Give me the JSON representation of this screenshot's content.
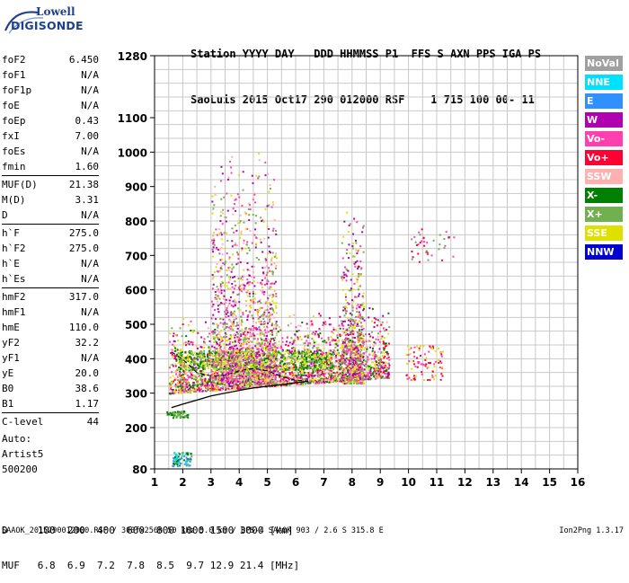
{
  "logo": {
    "line1": "Lowell",
    "line2": "DIGISONDE"
  },
  "header": {
    "line1": "Station YYYY DAY   DDD HHMMSS P1  FFS S AXN PPS IGA PS",
    "line2": "SaoLuis 2015 Oct17 290 012000 RSF    1 715 100 00- 11"
  },
  "params": [
    {
      "label": "foF2",
      "value": "6.450"
    },
    {
      "label": "foF1",
      "value": "N/A"
    },
    {
      "label": "foF1p",
      "value": "N/A"
    },
    {
      "label": "foE",
      "value": "N/A"
    },
    {
      "label": "foEp",
      "value": "0.43"
    },
    {
      "label": "fxI",
      "value": "7.00"
    },
    {
      "label": "foEs",
      "value": "N/A"
    },
    {
      "label": "fmin",
      "value": "1.60"
    },
    {
      "label": "MUF(D)",
      "value": "21.38"
    },
    {
      "label": "M(D)",
      "value": "3.31"
    },
    {
      "label": "D",
      "value": "N/A"
    },
    {
      "label": "h`F",
      "value": "275.0"
    },
    {
      "label": "h`F2",
      "value": "275.0"
    },
    {
      "label": "h`E",
      "value": "N/A"
    },
    {
      "label": "h`Es",
      "value": "N/A"
    },
    {
      "label": "hmF2",
      "value": "317.0"
    },
    {
      "label": "hmF1",
      "value": "N/A"
    },
    {
      "label": "hmE",
      "value": "110.0"
    },
    {
      "label": "yF2",
      "value": "32.2"
    },
    {
      "label": "yF1",
      "value": "N/A"
    },
    {
      "label": "yE",
      "value": "20.0"
    },
    {
      "label": "B0",
      "value": "38.6"
    },
    {
      "label": "B1",
      "value": "1.17"
    },
    {
      "label": "C-level",
      "value": "44"
    }
  ],
  "auto": {
    "line1": "Auto:",
    "line2": "Artist5",
    "line3": "500200"
  },
  "legend": [
    {
      "label": "NoVal",
      "color": "#a0a0a0"
    },
    {
      "label": "NNE",
      "color": "#00e0ff"
    },
    {
      "label": "E",
      "color": "#3090ff"
    },
    {
      "label": "W",
      "color": "#b000b0"
    },
    {
      "label": "Vo-",
      "color": "#ff3faf"
    },
    {
      "label": "Vo+",
      "color": "#ff0033"
    },
    {
      "label": "SSW",
      "color": "#ffb0b0"
    },
    {
      "label": "X-",
      "color": "#008000"
    },
    {
      "label": "X+",
      "color": "#70b050"
    },
    {
      "label": "SSE",
      "color": "#e0e000"
    },
    {
      "label": "NNW",
      "color": "#0000d0"
    }
  ],
  "chart_data": {
    "type": "scatter",
    "x_ticks": [
      "1",
      "2",
      "3",
      "4",
      "5",
      "6",
      "7",
      "8",
      "9",
      "10",
      "11",
      "12",
      "13",
      "14",
      "15",
      "16"
    ],
    "y_ticks": [
      "80",
      "200",
      "300",
      "400",
      "500",
      "600",
      "700",
      "800",
      "900",
      "1000",
      "1100",
      "1280"
    ],
    "xlim": [
      1,
      16
    ],
    "ylim": [
      80,
      1280
    ],
    "grid": true,
    "trace": {
      "x": [
        1.6,
        2.0,
        2.5,
        3.0,
        3.5,
        4.0,
        4.5,
        5.0,
        5.5,
        6.0,
        6.45
      ],
      "y": [
        258,
        268,
        280,
        292,
        300,
        308,
        315,
        320,
        325,
        330,
        335
      ]
    },
    "overlay_line": {
      "x": [
        1.6,
        2.0,
        2.5,
        3.0,
        3.5,
        4.0,
        4.5,
        5.0,
        5.5,
        6.0,
        6.45
      ],
      "y": [
        420,
        398,
        360,
        350,
        352,
        365,
        372,
        365,
        348,
        338,
        335
      ]
    }
  },
  "bottom": {
    "d_row": "D     100  200  400  600  800 1000 1500 3000 [km]",
    "muf_row": "MUF   6.8  6.9  7.2  7.8  8.5  9.7 12.9 21.4 [MHz]",
    "footer": "SAAOK_2015290012000.RSF / 300fx256h 50 kHz 5.0 km / DPS-4 SAAOK 903 / 2.6 S 315.8 E",
    "version": "Ion2Png 1.3.17"
  }
}
